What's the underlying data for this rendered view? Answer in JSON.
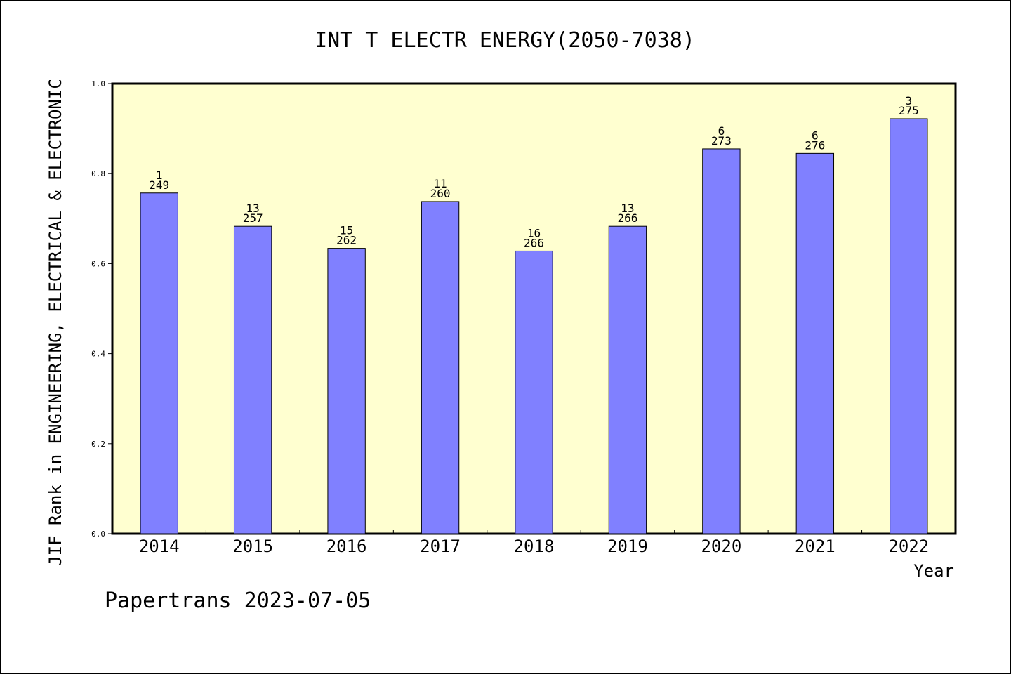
{
  "chart_data": {
    "type": "bar",
    "title": "INT T ELECTR ENERGY(2050-7038)",
    "xlabel": "Year",
    "ylabel": "JIF Rank in ENGINEERING, ELECTRICAL & ELECTRONIC",
    "ylim": [
      0,
      1.0
    ],
    "yticks": [
      "0.0",
      "0.2",
      "0.4",
      "0.6",
      "0.8",
      "1.0"
    ],
    "categories": [
      "2014",
      "2015",
      "2016",
      "2017",
      "2018",
      "2019",
      "2020",
      "2021",
      "2022"
    ],
    "values": [
      0.757,
      0.683,
      0.634,
      0.738,
      0.628,
      0.683,
      0.855,
      0.845,
      0.922
    ],
    "rank_labels": [
      "1",
      "13",
      "15",
      "11",
      "16",
      "13",
      "6",
      "6",
      "3"
    ],
    "total_labels": [
      "249",
      "257",
      "262",
      "260",
      "266",
      "266",
      "273",
      "276",
      "275"
    ],
    "grid": false,
    "legend": "none",
    "colors": {
      "bar": "#8080ff",
      "plot_background": "#ffffd0",
      "bar_edge": "#000000"
    }
  },
  "footer": "Papertrans 2023-07-05"
}
